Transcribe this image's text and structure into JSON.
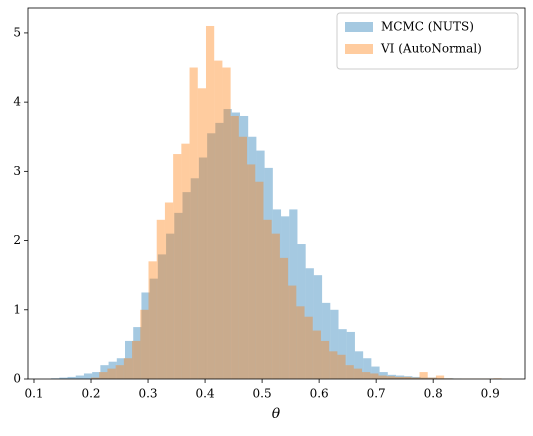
{
  "chart_data": {
    "type": "histogram",
    "xlabel": "θ",
    "xlim": [
      0.0895,
      0.961
    ],
    "xticks": [
      0.1,
      0.2,
      0.3,
      0.4,
      0.5,
      0.6,
      0.7,
      0.8,
      0.9
    ],
    "ylim": [
      0,
      5.36
    ],
    "yticks": [
      0,
      1,
      2,
      3,
      4,
      5
    ],
    "alpha": 0.4,
    "legend": "upper right",
    "series": [
      {
        "name": "MCMC (NUTS)",
        "color": "#1f77b4",
        "bins": [
          0.13,
          0.1444,
          0.1588,
          0.1732,
          0.1876,
          0.202,
          0.2164,
          0.2308,
          0.2452,
          0.2596,
          0.274,
          0.2884,
          0.3028,
          0.3172,
          0.3316,
          0.346,
          0.3604,
          0.3748,
          0.3892,
          0.4036,
          0.418,
          0.4324,
          0.4468,
          0.4612,
          0.4756,
          0.49,
          0.5044,
          0.5188,
          0.5332,
          0.5476,
          0.562,
          0.5764,
          0.5908,
          0.6052,
          0.6196,
          0.634,
          0.6484,
          0.6628,
          0.6772,
          0.6916,
          0.706,
          0.7204,
          0.7348,
          0.7492,
          0.7636,
          0.778,
          0.7924,
          0.8068,
          0.8212,
          0.8356,
          0.85
        ],
        "values": [
          0.01,
          0.02,
          0.03,
          0.05,
          0.08,
          0.1,
          0.2,
          0.25,
          0.3,
          0.55,
          0.75,
          1.25,
          1.45,
          1.8,
          2.1,
          2.4,
          2.7,
          2.9,
          3.2,
          3.55,
          3.7,
          3.9,
          3.85,
          3.8,
          3.5,
          3.3,
          3.05,
          2.45,
          2.35,
          2.45,
          1.95,
          1.6,
          1.5,
          1.1,
          1.0,
          0.72,
          0.68,
          0.4,
          0.3,
          0.18,
          0.1,
          0.06,
          0.05,
          0.04,
          0.03,
          0.02,
          0.02,
          0.01,
          0.01,
          0.005
        ]
      },
      {
        "name": "VI (AutoNormal)",
        "color": "#ff7f0e",
        "bins": [
          0.2,
          0.2144,
          0.2288,
          0.2432,
          0.2576,
          0.272,
          0.2864,
          0.3008,
          0.3152,
          0.3296,
          0.344,
          0.3584,
          0.3728,
          0.3872,
          0.4016,
          0.416,
          0.4304,
          0.4448,
          0.4592,
          0.4736,
          0.488,
          0.5024,
          0.5168,
          0.5312,
          0.5456,
          0.56,
          0.5744,
          0.5888,
          0.6032,
          0.6176,
          0.632,
          0.6464,
          0.6608,
          0.6752,
          0.6896,
          0.704,
          0.7184,
          0.7328,
          0.7472,
          0.7616,
          0.776,
          0.7904,
          0.8048,
          0.8192,
          0.8336,
          0.848,
          0.8624,
          0.8768,
          0.8912,
          0.9056,
          0.92
        ],
        "values": [
          0.02,
          0.1,
          0.15,
          0.2,
          0.3,
          0.55,
          1.0,
          1.7,
          2.3,
          2.55,
          3.25,
          3.4,
          4.5,
          4.2,
          5.1,
          4.6,
          4.5,
          3.8,
          3.5,
          3.1,
          2.85,
          2.3,
          2.1,
          1.75,
          1.35,
          1.05,
          0.9,
          0.7,
          0.55,
          0.4,
          0.35,
          0.2,
          0.15,
          0.1,
          0.08,
          0.05,
          0.04,
          0.03,
          0.03,
          0.02,
          0.1,
          0.02,
          0.05,
          0.01,
          0.005,
          0.005,
          0.005,
          0.005,
          0.005,
          0.01
        ]
      }
    ]
  }
}
